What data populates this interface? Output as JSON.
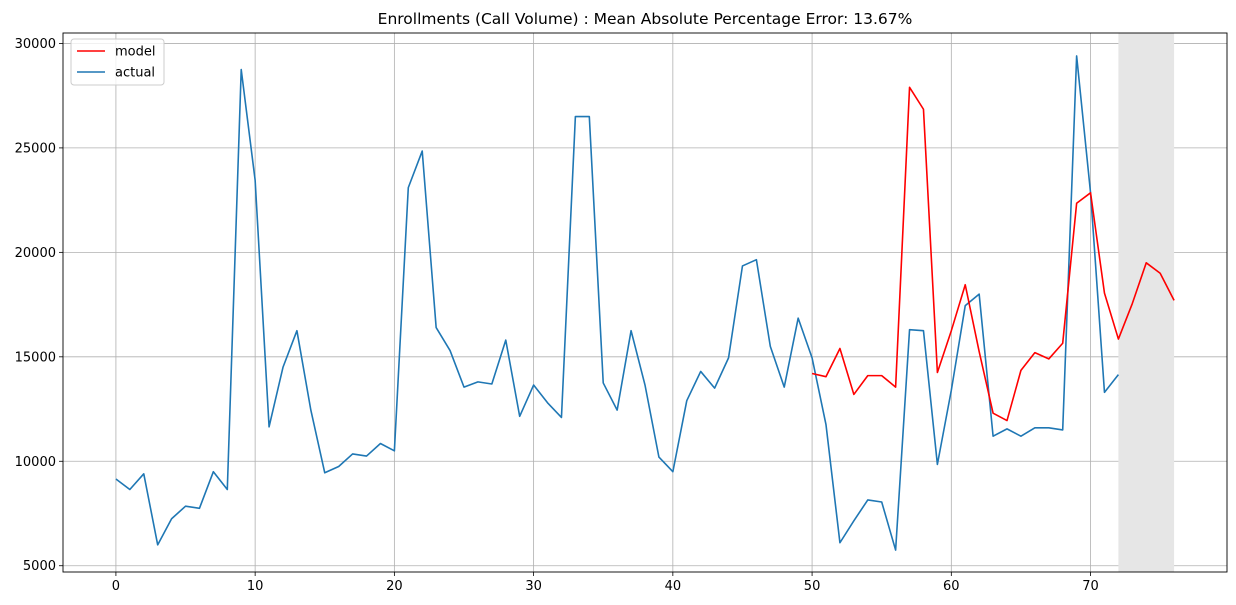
{
  "chart_data": {
    "type": "line",
    "title": "Enrollments (Call Volume) : Mean Absolute Percentage Error: 13.67%",
    "xlabel": "",
    "ylabel": "",
    "xlim": [
      -3.8,
      79.8
    ],
    "ylim": [
      4700,
      30500
    ],
    "xticks": [
      0,
      10,
      20,
      30,
      40,
      50,
      60,
      70
    ],
    "yticks": [
      5000,
      10000,
      15000,
      20000,
      25000,
      30000
    ],
    "grid": true,
    "legend_position": "upper left",
    "shaded_region": {
      "x_start": 72,
      "x_end": 76,
      "color": "#e6e6e6"
    },
    "series": [
      {
        "name": "model",
        "color": "#ff0000",
        "x": [
          50,
          51,
          52,
          53,
          54,
          55,
          56,
          57,
          58,
          59,
          60,
          61,
          62,
          63,
          64,
          65,
          66,
          67,
          68,
          69,
          70,
          71,
          72,
          73,
          74,
          75,
          76
        ],
        "values": [
          14200,
          14050,
          15400,
          13200,
          14100,
          14100,
          13550,
          27900,
          26850,
          14250,
          16250,
          18450,
          15250,
          12300,
          11950,
          14350,
          15200,
          14900,
          15650,
          22350,
          22850,
          18050,
          15850,
          17550,
          19500,
          19000,
          17700
        ]
      },
      {
        "name": "actual",
        "color": "#1f77b4",
        "x": [
          0,
          1,
          2,
          3,
          4,
          5,
          6,
          7,
          8,
          9,
          10,
          11,
          12,
          13,
          14,
          15,
          16,
          17,
          18,
          19,
          20,
          21,
          22,
          23,
          24,
          25,
          26,
          27,
          28,
          29,
          30,
          31,
          32,
          33,
          34,
          35,
          36,
          37,
          38,
          39,
          40,
          41,
          42,
          43,
          44,
          45,
          46,
          47,
          48,
          49,
          50,
          51,
          52,
          53,
          54,
          55,
          56,
          57,
          58,
          59,
          60,
          61,
          62,
          63,
          64,
          65,
          66,
          67,
          68,
          69,
          70,
          71,
          72
        ],
        "values": [
          9150,
          8650,
          9400,
          6000,
          7250,
          7850,
          7750,
          9500,
          8650,
          28750,
          23450,
          11650,
          14500,
          16250,
          12450,
          9450,
          9750,
          10350,
          10250,
          10850,
          10500,
          23100,
          24850,
          16400,
          15300,
          13550,
          13800,
          13700,
          15800,
          12150,
          13650,
          12800,
          12100,
          26500,
          26500,
          13750,
          12450,
          16250,
          13650,
          10200,
          9500,
          12900,
          14300,
          13500,
          14950,
          19350,
          19650,
          15500,
          13550,
          16850,
          14950,
          11750,
          6100,
          7150,
          8150,
          8050,
          5750,
          16300,
          16250,
          9850,
          13400,
          17450,
          18000,
          11200,
          11550,
          11200,
          11600,
          11600,
          11500,
          29400,
          22850,
          13300,
          14150
        ]
      }
    ]
  }
}
